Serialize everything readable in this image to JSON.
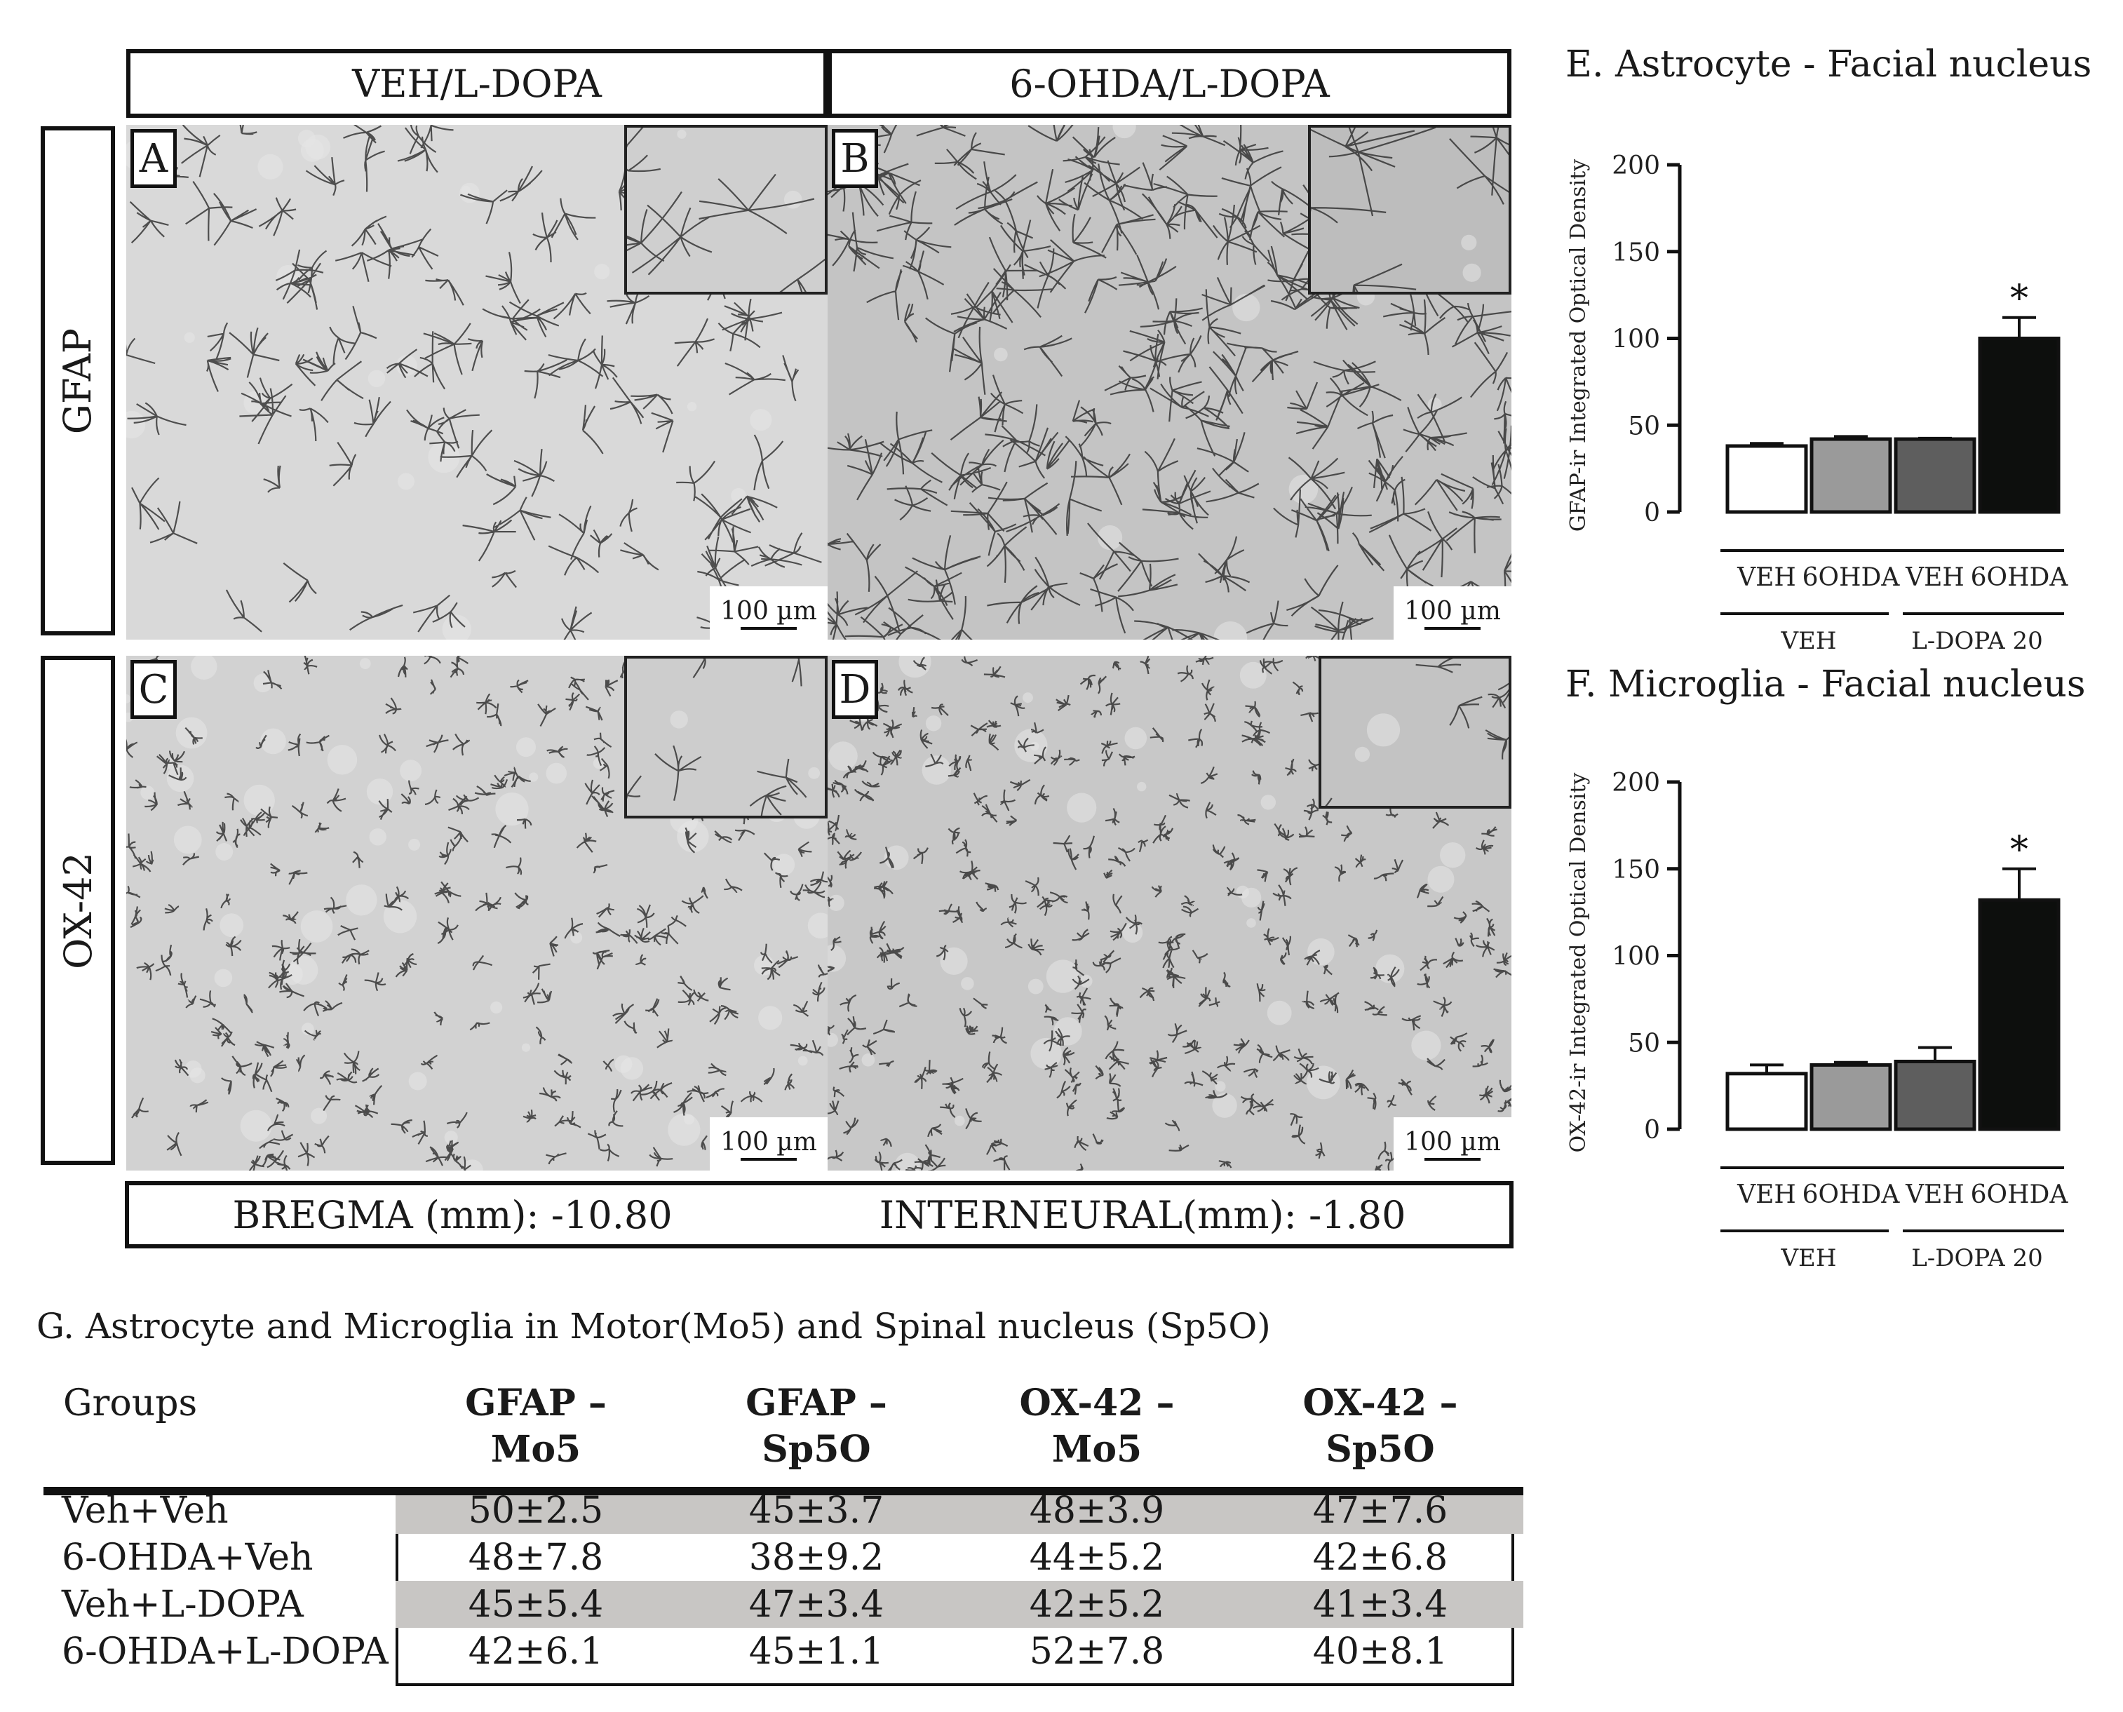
{
  "columns": [
    {
      "header": "VEH/L-DOPA"
    },
    {
      "header": "6-OHDA/L-DOPA"
    }
  ],
  "rows": [
    {
      "label": "GFAP"
    },
    {
      "label": "OX-42"
    }
  ],
  "panels": {
    "A": {
      "letter": "A",
      "scale": "100 µm"
    },
    "B": {
      "letter": "B",
      "scale": "100 µm"
    },
    "C": {
      "letter": "C",
      "scale": "100 µm"
    },
    "D": {
      "letter": "D",
      "scale": "100 µm"
    }
  },
  "footer": {
    "bregma": "BREGMA (mm): -10.80",
    "interneural": "INTERNEURAL(mm): -1.80"
  },
  "colors": {
    "bar_fills": [
      "#ffffff",
      "#9a9a9a",
      "#5e5e5e",
      "#0d0f0d"
    ]
  },
  "chart_data": [
    {
      "type": "bar",
      "title": "E. Astrocyte - Facial nucleus",
      "ylabel": "GFAP-ir Integrated Optical Density",
      "ylim": [
        0,
        200
      ],
      "yticks": [
        "0",
        "50",
        "100",
        "150",
        "200"
      ],
      "categories": [
        "VEH",
        "6OHDA",
        "VEH",
        "6OHDA"
      ],
      "groups": [
        "VEH",
        "L-DOPA 20"
      ],
      "values": [
        38,
        42,
        42,
        100
      ],
      "errors": [
        1.5,
        1.5,
        0.5,
        12
      ],
      "annotation": "*"
    },
    {
      "type": "bar",
      "title": "F. Microglia - Facial nucleus",
      "ylabel": "OX-42-ir Integrated Optical Density",
      "ylim": [
        0,
        200
      ],
      "yticks": [
        "0",
        "50",
        "100",
        "150",
        "200"
      ],
      "categories": [
        "VEH",
        "6OHDA",
        "VEH",
        "6OHDA"
      ],
      "groups": [
        "VEH",
        "L-DOPA 20"
      ],
      "values": [
        32,
        37,
        39,
        132
      ],
      "errors": [
        5,
        1.5,
        8,
        18
      ],
      "annotation": "*"
    }
  ],
  "table": {
    "title": "G. Astrocyte and Microglia in Motor(Mo5) and Spinal nucleus (Sp5O)",
    "header_groups": "Groups",
    "headers": [
      {
        "line1": "GFAP –",
        "line2": "Mo5"
      },
      {
        "line1": "GFAP –",
        "line2": "Sp5O"
      },
      {
        "line1": "OX-42 –",
        "line2": "Mo5"
      },
      {
        "line1": "OX-42 –",
        "line2": "Sp5O"
      }
    ],
    "rows": [
      {
        "group": "Veh+Veh",
        "cells": [
          "50±2.5",
          "45±3.7",
          "48±3.9",
          "47±7.6"
        ]
      },
      {
        "group": "6-OHDA+Veh",
        "cells": [
          "48±7.8",
          "38±9.2",
          "44±5.2",
          "42±6.8"
        ]
      },
      {
        "group": "Veh+L-DOPA",
        "cells": [
          "45±5.4",
          "47±3.4",
          "42±5.2",
          "41±3.4"
        ]
      },
      {
        "group": "6-OHDA+L-DOPA",
        "cells": [
          "42±6.1",
          "45±1.1",
          "52±7.8",
          "40±8.1"
        ]
      }
    ]
  }
}
